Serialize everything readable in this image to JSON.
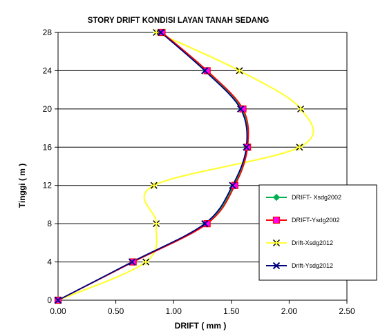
{
  "chart_data": {
    "type": "line",
    "title": "STORY DRIFT KONDISI LAYAN TANAH SEDANG",
    "xlabel": "DRIFT ( mm )",
    "ylabel": "Tinggi ( m )",
    "xlim": [
      0,
      2.5
    ],
    "ylim": [
      0,
      28
    ],
    "xticks": [
      "0.00",
      "0.50",
      "1.00",
      "1.50",
      "2.00",
      "2.50"
    ],
    "yticks": [
      "0",
      "4",
      "8",
      "12",
      "16",
      "20",
      "24",
      "28"
    ],
    "grid": "horizontal",
    "legend_position": "right",
    "series": [
      {
        "name": "DRIFT- Xsdg2002",
        "color": "#00B050",
        "marker": "diamond",
        "x": [
          0,
          0.65,
          1.28,
          1.52,
          1.63,
          1.59,
          1.28,
          0.89
        ],
        "y": [
          0,
          4,
          8,
          12,
          16,
          20,
          24,
          28
        ]
      },
      {
        "name": "DRIFT-Ysdg2002",
        "color": "#FF0000",
        "marker": "square",
        "x": [
          0,
          0.65,
          1.29,
          1.53,
          1.64,
          1.6,
          1.29,
          0.9
        ],
        "y": [
          0,
          4,
          8,
          12,
          16,
          20,
          24,
          28
        ]
      },
      {
        "name": "Drift-Xsdg2012",
        "color": "#FFFF33",
        "marker": "star",
        "x": [
          0,
          0.76,
          0.85,
          0.83,
          2.09,
          2.1,
          1.57,
          0.85
        ],
        "y": [
          0,
          4,
          8,
          12,
          16,
          20,
          24,
          28
        ]
      },
      {
        "name": "Drift-Ysdg2012",
        "color": "#000080",
        "marker": "x",
        "x": [
          0,
          0.64,
          1.27,
          1.51,
          1.63,
          1.58,
          1.27,
          0.89
        ],
        "y": [
          0,
          4,
          8,
          12,
          16,
          20,
          24,
          28
        ]
      }
    ]
  }
}
